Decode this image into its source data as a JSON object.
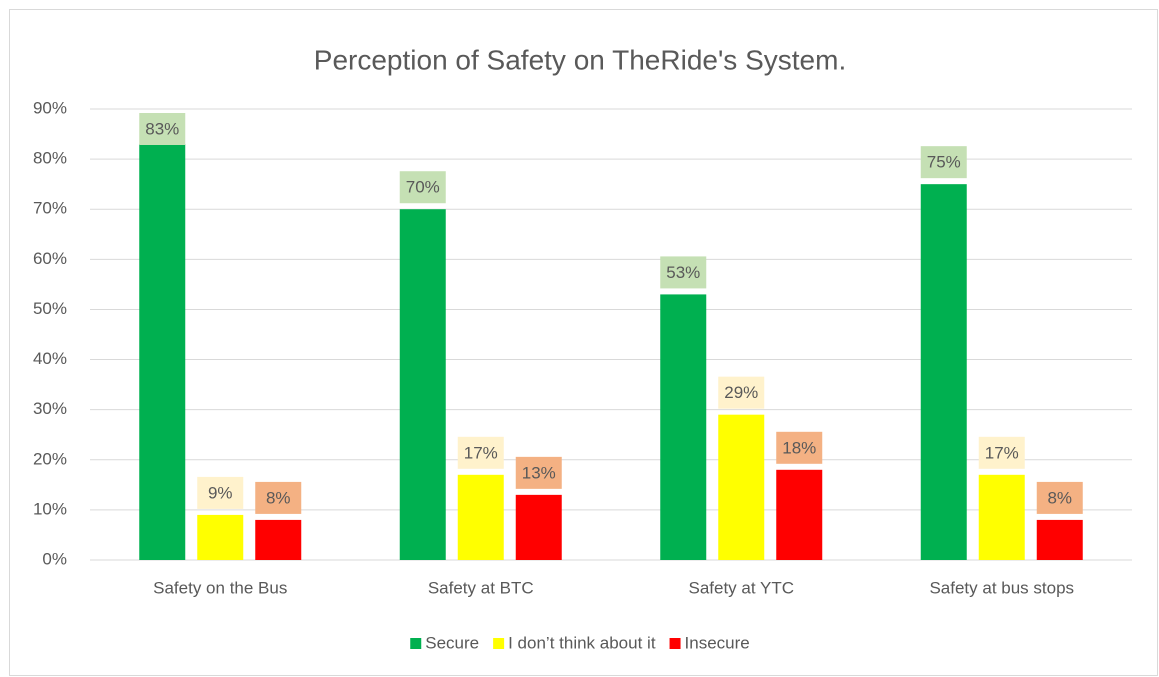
{
  "chart_data": {
    "type": "bar",
    "title": "Perception of Safety on TheRide's System.",
    "categories": [
      "Safety on the Bus",
      "Safety at BTC",
      "Safety at YTC",
      "Safety at bus stops"
    ],
    "series": [
      {
        "name": "Secure",
        "color": "#00b050",
        "label_color": "#c5e0b4",
        "values": [
          83,
          70,
          53,
          75
        ],
        "value_labels": [
          "83%",
          "70%",
          "53%",
          "75%"
        ]
      },
      {
        "name": "I don’t think about it",
        "color": "#ffff00",
        "label_color": "#fff2cc",
        "values": [
          9,
          17,
          29,
          17
        ],
        "value_labels": [
          "9%",
          "17%",
          "29%",
          "17%"
        ]
      },
      {
        "name": "Insecure",
        "color": "#ff0000",
        "label_color": "#f4b183",
        "values": [
          8,
          13,
          18,
          8
        ],
        "value_labels": [
          "8%",
          "13%",
          "18%",
          "8%"
        ]
      }
    ],
    "ylim": [
      0,
      90
    ],
    "yticks": [
      {
        "value": 0,
        "label": "0%"
      },
      {
        "value": 10,
        "label": "10%"
      },
      {
        "value": 20,
        "label": "20%"
      },
      {
        "value": 30,
        "label": "30%"
      },
      {
        "value": 40,
        "label": "40%"
      },
      {
        "value": 50,
        "label": "50%"
      },
      {
        "value": 60,
        "label": "60%"
      },
      {
        "value": 70,
        "label": "70%"
      },
      {
        "value": 80,
        "label": "80%"
      },
      {
        "value": 90,
        "label": "90%"
      }
    ],
    "grid": true,
    "legend": "bottom"
  }
}
